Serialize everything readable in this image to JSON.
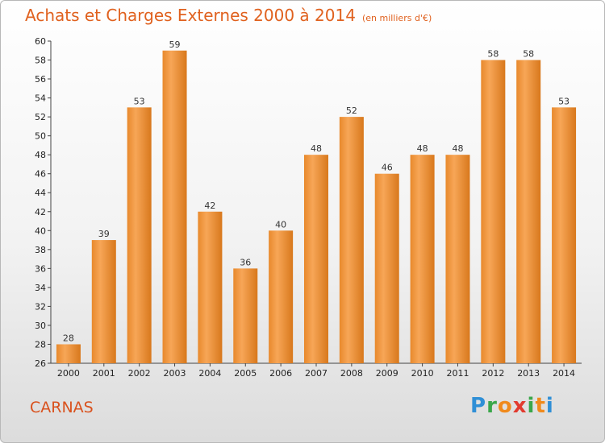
{
  "header": {
    "title": "Achats et Charges Externes 2000 à 2014",
    "subtitle": "(en milliers d'€)"
  },
  "footer": {
    "commune": "CARNAS",
    "logo": [
      "P",
      "r",
      "o",
      "x",
      "i",
      "t",
      "i"
    ]
  },
  "colors": {
    "bar_top": "#f7a657",
    "bar_bottom": "#d67a1c",
    "title": "#e0611e",
    "logo": [
      "#2f8fd6",
      "#3aa74a",
      "#f08a1c",
      "#e23b2f",
      "#3aa74a",
      "#f08a1c",
      "#2f8fd6"
    ]
  },
  "chart_data": {
    "type": "bar",
    "title": "Achats et Charges Externes 2000 à 2014",
    "categories": [
      "2000",
      "2001",
      "2002",
      "2003",
      "2004",
      "2005",
      "2006",
      "2007",
      "2008",
      "2009",
      "2010",
      "2011",
      "2012",
      "2013",
      "2014"
    ],
    "values": [
      28,
      39,
      53,
      59,
      42,
      36,
      40,
      48,
      52,
      46,
      48,
      48,
      58,
      58,
      53
    ],
    "ylim": [
      26,
      60
    ],
    "yticks": [
      26,
      28,
      30,
      32,
      34,
      36,
      38,
      40,
      42,
      44,
      46,
      48,
      50,
      52,
      54,
      56,
      58,
      60
    ],
    "grid": false,
    "legend": "none"
  }
}
